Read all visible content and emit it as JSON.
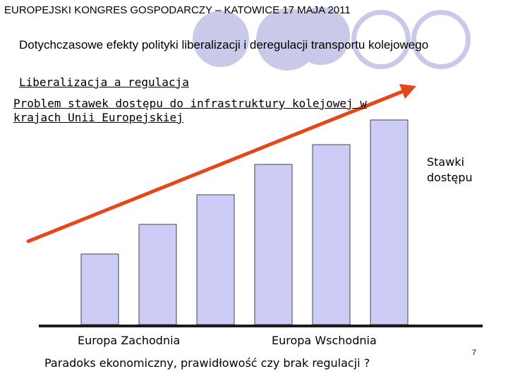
{
  "header": {
    "text": "EUROPEJSKI KONGRES GOSPODARCZY – KATOWICE 17 MAJA 2011"
  },
  "slide": {
    "title": "Dotychczasowe efekty polityki liberalizacji i deregulacji transportu kolejowego",
    "subtitle1": "Liberalizacja a regulacja",
    "subtitle2": "Problem stawek dostępu do infrastruktury kolejowej w krajach Unii Europejskiej",
    "legend_label": "Stawki dostępu",
    "label_west": "Europa Zachodnia",
    "label_east": "Europa Wschodnia",
    "bottom_text": "Paradoks ekonomiczny, prawidłowość czy brak regulacji ?",
    "page_number": "7"
  },
  "colors": {
    "bar_fill": "#ccccf7",
    "bar_stroke": "#444444",
    "arrow": "#e5461b",
    "circle": "#c9c9ea",
    "axis": "#1a1a1a"
  },
  "chart_data": {
    "type": "bar",
    "categories": [
      "",
      "",
      "",
      "",
      "",
      ""
    ],
    "values": [
      1.0,
      1.42,
      1.84,
      2.27,
      2.55,
      2.9
    ],
    "group_labels": [
      "Europa Zachodnia",
      "Europa Wschodnia"
    ],
    "legend": "Stawki dostępu",
    "trend_arrow": "rising",
    "grid": false
  }
}
